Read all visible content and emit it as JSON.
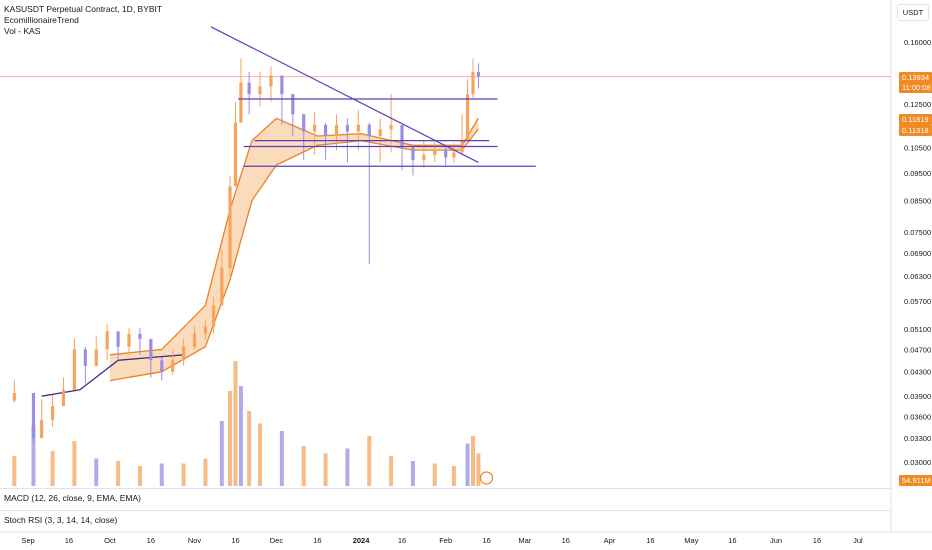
{
  "header": {
    "symbol_line": "KASUSDT Perpetual Contract, 1D, BYBIT",
    "indicator_1": "EcomillionaireTrend",
    "indicator_2": "Vol - KAS"
  },
  "unit_label": "USDT",
  "price_tags": {
    "last_price": "0.13934",
    "countdown": "11:00:08",
    "trend_upper": "0.11819",
    "trend_lower": "0.11318",
    "volume": "54.911M"
  },
  "colors": {
    "up": "#f7a35c",
    "down": "#9a8ee0",
    "trendline": "#5b3fbf",
    "band_fill": "#f7c48f",
    "band_edge": "#e8822b",
    "last_price_line": "#f4a89a",
    "purple_ma": "#4a2b80"
  },
  "panes": {
    "macd": "MACD (12, 26, close, 9, EMA, EMA)",
    "stoch_rsi": "Stoch RSI (3, 3, 14, 14, close)"
  },
  "chart_data": {
    "type": "candlestick",
    "title": "KASUSDT Perpetual Contract, 1D, BYBIT",
    "y_scale": "log",
    "ylim": [
      0.027,
      0.168
    ],
    "y_ticks": [
      "0.16000",
      "0.14000",
      "0.12500",
      "0.11500",
      "0.10500",
      "0.09500",
      "0.08500",
      "0.07500",
      "0.06900",
      "0.06300",
      "0.05700",
      "0.05100",
      "0.04700",
      "0.04300",
      "0.03900",
      "0.03600",
      "0.03300",
      "0.03000"
    ],
    "y_tick_values": [
      0.16,
      0.14,
      0.125,
      0.115,
      0.105,
      0.095,
      0.085,
      0.075,
      0.069,
      0.063,
      0.057,
      0.051,
      0.047,
      0.043,
      0.039,
      0.036,
      0.033,
      0.03
    ],
    "x_ticks": [
      {
        "label": "Sep",
        "date": "2023-09-01"
      },
      {
        "label": "16",
        "date": "2023-09-16"
      },
      {
        "label": "Oct",
        "date": "2023-10-01"
      },
      {
        "label": "16",
        "date": "2023-10-16"
      },
      {
        "label": "Nov",
        "date": "2023-11-01"
      },
      {
        "label": "16",
        "date": "2023-11-16"
      },
      {
        "label": "Dec",
        "date": "2023-12-01"
      },
      {
        "label": "16",
        "date": "2023-12-16"
      },
      {
        "label": "2024",
        "date": "2024-01-01"
      },
      {
        "label": "16",
        "date": "2024-01-16"
      },
      {
        "label": "Feb",
        "date": "2024-02-01"
      },
      {
        "label": "16",
        "date": "2024-02-16"
      },
      {
        "label": "Mar",
        "date": "2024-03-01"
      },
      {
        "label": "16",
        "date": "2024-03-16"
      },
      {
        "label": "Apr",
        "date": "2024-04-01"
      },
      {
        "label": "16",
        "date": "2024-04-16"
      },
      {
        "label": "May",
        "date": "2024-05-01"
      },
      {
        "label": "16",
        "date": "2024-05-16"
      },
      {
        "label": "Jun",
        "date": "2024-06-01"
      },
      {
        "label": "16",
        "date": "2024-06-16"
      },
      {
        "label": "Jul",
        "date": "2024-07-01"
      }
    ],
    "close_series": [
      [
        "2023-08-27",
        0.0395
      ],
      [
        "2023-09-03",
        0.033
      ],
      [
        "2023-09-06",
        0.0355
      ],
      [
        "2023-09-10",
        0.0375
      ],
      [
        "2023-09-14",
        0.04
      ],
      [
        "2023-09-18",
        0.047
      ],
      [
        "2023-09-22",
        0.044
      ],
      [
        "2023-09-26",
        0.047
      ],
      [
        "2023-09-30",
        0.0505
      ],
      [
        "2023-10-04",
        0.0475
      ],
      [
        "2023-10-08",
        0.05
      ],
      [
        "2023-10-12",
        0.049
      ],
      [
        "2023-10-16",
        0.045
      ],
      [
        "2023-10-20",
        0.043
      ],
      [
        "2023-10-24",
        0.045
      ],
      [
        "2023-10-28",
        0.0475
      ],
      [
        "2023-11-01",
        0.05
      ],
      [
        "2023-11-05",
        0.0515
      ],
      [
        "2023-11-08",
        0.056
      ],
      [
        "2023-11-11",
        0.065
      ],
      [
        "2023-11-14",
        0.09
      ],
      [
        "2023-11-16",
        0.116
      ],
      [
        "2023-11-18",
        0.136
      ],
      [
        "2023-11-21",
        0.13
      ],
      [
        "2023-11-25",
        0.134
      ],
      [
        "2023-11-29",
        0.14
      ],
      [
        "2023-12-03",
        0.13
      ],
      [
        "2023-12-07",
        0.12
      ],
      [
        "2023-12-11",
        0.112
      ],
      [
        "2023-12-15",
        0.115
      ],
      [
        "2023-12-19",
        0.11
      ],
      [
        "2023-12-23",
        0.115
      ],
      [
        "2023-12-27",
        0.112
      ],
      [
        "2023-12-31",
        0.115
      ],
      [
        "2024-01-04",
        0.11
      ],
      [
        "2024-01-08",
        0.113
      ],
      [
        "2024-01-12",
        0.115
      ],
      [
        "2024-01-16",
        0.105
      ],
      [
        "2024-01-20",
        0.1
      ],
      [
        "2024-01-24",
        0.102
      ],
      [
        "2024-01-28",
        0.104
      ],
      [
        "2024-02-01",
        0.101
      ],
      [
        "2024-02-04",
        0.103
      ],
      [
        "2024-02-07",
        0.108
      ],
      [
        "2024-02-09",
        0.13
      ],
      [
        "2024-02-11",
        0.142
      ],
      [
        "2024-02-13",
        0.1393
      ]
    ],
    "candle_highs": [
      [
        0.0417
      ],
      [
        0.036
      ],
      [
        0.0385
      ],
      [
        0.0392
      ],
      [
        0.042
      ],
      [
        0.049
      ],
      [
        0.0475
      ],
      [
        0.0495
      ],
      [
        0.052
      ],
      [
        0.05
      ],
      [
        0.0512
      ],
      [
        0.0512
      ],
      [
        0.048
      ],
      [
        0.0455
      ],
      [
        0.047
      ],
      [
        0.049
      ],
      [
        0.0515
      ],
      [
        0.053
      ],
      [
        0.058
      ],
      [
        0.07
      ],
      [
        0.094
      ],
      [
        0.126
      ],
      [
        0.15
      ],
      [
        0.142
      ],
      [
        0.142
      ],
      [
        0.145
      ],
      [
        0.138
      ],
      [
        0.125
      ],
      [
        0.118
      ],
      [
        0.121
      ],
      [
        0.116
      ],
      [
        0.12
      ],
      [
        0.118
      ],
      [
        0.122
      ],
      [
        0.116
      ],
      [
        0.118
      ],
      [
        0.13
      ],
      [
        0.11
      ],
      [
        0.106
      ],
      [
        0.108
      ],
      [
        0.108
      ],
      [
        0.106
      ],
      [
        0.107
      ],
      [
        0.12
      ],
      [
        0.138
      ],
      [
        0.15
      ],
      [
        0.147
      ]
    ],
    "candle_lows": [
      [
        0.038
      ],
      [
        0.0325
      ],
      [
        0.033
      ],
      [
        0.0345
      ],
      [
        0.038
      ],
      [
        0.041
      ],
      [
        0.041
      ],
      [
        0.044
      ],
      [
        0.045
      ],
      [
        0.045
      ],
      [
        0.046
      ],
      [
        0.046
      ],
      [
        0.042
      ],
      [
        0.0415
      ],
      [
        0.0425
      ],
      [
        0.044
      ],
      [
        0.047
      ],
      [
        0.049
      ],
      [
        0.05
      ],
      [
        0.056
      ],
      [
        0.063
      ],
      [
        0.09
      ],
      [
        0.12
      ],
      [
        0.12
      ],
      [
        0.124
      ],
      [
        0.126
      ],
      [
        0.115
      ],
      [
        0.11
      ],
      [
        0.1
      ],
      [
        0.102
      ],
      [
        0.1
      ],
      [
        0.104
      ],
      [
        0.099
      ],
      [
        0.104
      ],
      [
        0.066
      ],
      [
        0.099
      ],
      [
        0.103
      ],
      [
        0.096
      ],
      [
        0.094
      ],
      [
        0.097
      ],
      [
        0.099
      ],
      [
        0.098
      ],
      [
        0.099
      ],
      [
        0.102
      ],
      [
        0.108
      ],
      [
        0.128
      ],
      [
        0.133
      ]
    ],
    "volume_series": [
      [
        "2023-08-27",
        1.2
      ],
      [
        "2023-09-03",
        2.4
      ],
      [
        "2023-09-10",
        1.4
      ],
      [
        "2023-09-18",
        1.8
      ],
      [
        "2023-09-26",
        1.1
      ],
      [
        "2023-10-04",
        1.0
      ],
      [
        "2023-10-12",
        0.8
      ],
      [
        "2023-10-20",
        0.9
      ],
      [
        "2023-10-28",
        0.9
      ],
      [
        "2023-11-05",
        1.1
      ],
      [
        "2023-11-11",
        2.6
      ],
      [
        "2023-11-14",
        3.8
      ],
      [
        "2023-11-16",
        5.0
      ],
      [
        "2023-11-18",
        4.0
      ],
      [
        "2023-11-21",
        3.0
      ],
      [
        "2023-11-25",
        2.5
      ],
      [
        "2023-12-03",
        2.2
      ],
      [
        "2023-12-11",
        1.6
      ],
      [
        "2023-12-19",
        1.3
      ],
      [
        "2023-12-27",
        1.5
      ],
      [
        "2024-01-04",
        2.0
      ],
      [
        "2024-01-12",
        1.2
      ],
      [
        "2024-01-20",
        1.0
      ],
      [
        "2024-01-28",
        0.9
      ],
      [
        "2024-02-04",
        0.8
      ],
      [
        "2024-02-09",
        1.7
      ],
      [
        "2024-02-11",
        2.0
      ],
      [
        "2024-02-13",
        1.3
      ]
    ],
    "trend_band": {
      "upper": [
        [
          "2023-10-01",
          0.046
        ],
        [
          "2023-10-20",
          0.047
        ],
        [
          "2023-11-05",
          0.056
        ],
        [
          "2023-11-14",
          0.082
        ],
        [
          "2023-11-22",
          0.108
        ],
        [
          "2023-12-01",
          0.118
        ],
        [
          "2023-12-16",
          0.11
        ],
        [
          "2024-01-01",
          0.111
        ],
        [
          "2024-01-20",
          0.106
        ],
        [
          "2024-02-07",
          0.106
        ],
        [
          "2024-02-13",
          0.1182
        ]
      ],
      "lower": [
        [
          "2023-10-01",
          0.0415
        ],
        [
          "2023-10-20",
          0.043
        ],
        [
          "2023-11-05",
          0.0475
        ],
        [
          "2023-11-14",
          0.062
        ],
        [
          "2023-11-22",
          0.085
        ],
        [
          "2023-12-01",
          0.098
        ],
        [
          "2023-12-16",
          0.106
        ],
        [
          "2024-01-01",
          0.108
        ],
        [
          "2024-01-20",
          0.104
        ],
        [
          "2024-02-07",
          0.104
        ],
        [
          "2024-02-13",
          0.1132
        ]
      ]
    },
    "ma_line": [
      [
        "2023-09-06",
        0.039
      ],
      [
        "2023-09-20",
        0.04
      ],
      [
        "2023-10-04",
        0.045
      ],
      [
        "2023-10-16",
        0.0455
      ],
      [
        "2023-10-28",
        0.046
      ]
    ],
    "horizontal_levels": [
      {
        "y": 0.1275,
        "from": "2023-11-17",
        "to": "2024-02-20"
      },
      {
        "y": 0.108,
        "from": "2023-11-23",
        "to": "2024-02-17"
      },
      {
        "y": 0.1055,
        "from": "2023-11-19",
        "to": "2024-02-20"
      },
      {
        "y": 0.0975,
        "from": "2023-11-19",
        "to": "2024-03-05"
      }
    ],
    "descending_trendline": {
      "from": [
        "2023-11-07",
        0.17
      ],
      "to": [
        "2024-02-13",
        0.099
      ]
    },
    "last_price": 0.13934
  }
}
